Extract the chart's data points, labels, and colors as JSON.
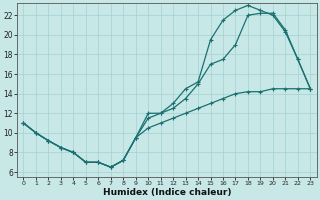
{
  "xlabel": "Humidex (Indice chaleur)",
  "bg_color": "#c8e8e8",
  "grid_color": "#aad4d4",
  "line_color": "#1a7070",
  "xlim": [
    -0.5,
    23.5
  ],
  "ylim": [
    5.5,
    23.2
  ],
  "xticks": [
    0,
    1,
    2,
    3,
    4,
    5,
    6,
    7,
    8,
    9,
    10,
    11,
    12,
    13,
    14,
    15,
    16,
    17,
    18,
    19,
    20,
    21,
    22,
    23
  ],
  "yticks": [
    6,
    8,
    10,
    12,
    14,
    16,
    18,
    20,
    22
  ],
  "line1_x": [
    0,
    1,
    2,
    3,
    4,
    5,
    6,
    7,
    8,
    9,
    10,
    11,
    12,
    13,
    14,
    15,
    16,
    17,
    18,
    19,
    20,
    21,
    22,
    23
  ],
  "line1_y": [
    11,
    10,
    9.2,
    8.5,
    8.0,
    7.0,
    7.0,
    6.5,
    7.2,
    9.5,
    12.0,
    12.0,
    12.5,
    13.5,
    15.0,
    17.0,
    17.5,
    19.0,
    22.0,
    22.2,
    22.2,
    20.5,
    17.5,
    14.5
  ],
  "line2_x": [
    0,
    1,
    2,
    3,
    4,
    5,
    6,
    7,
    8,
    9,
    10,
    11,
    12,
    13,
    14,
    15,
    16,
    17,
    18,
    19,
    20,
    21,
    22,
    23
  ],
  "line2_y": [
    11,
    10,
    9.2,
    8.5,
    8.0,
    7.0,
    7.0,
    6.5,
    7.2,
    9.5,
    11.5,
    12.0,
    13.0,
    14.5,
    15.2,
    19.5,
    21.5,
    22.5,
    23.0,
    22.5,
    22.0,
    20.3,
    17.5,
    14.5
  ],
  "line3_x": [
    0,
    1,
    2,
    3,
    4,
    5,
    6,
    7,
    8,
    9,
    10,
    11,
    12,
    13,
    14,
    15,
    16,
    17,
    18,
    19,
    20,
    21,
    22,
    23
  ],
  "line3_y": [
    11,
    10,
    9.2,
    8.5,
    8.0,
    7.0,
    7.0,
    6.5,
    7.2,
    9.5,
    10.5,
    11.0,
    11.5,
    12.0,
    12.5,
    13.0,
    13.5,
    14.0,
    14.2,
    14.2,
    14.5,
    14.5,
    14.5,
    14.5
  ]
}
